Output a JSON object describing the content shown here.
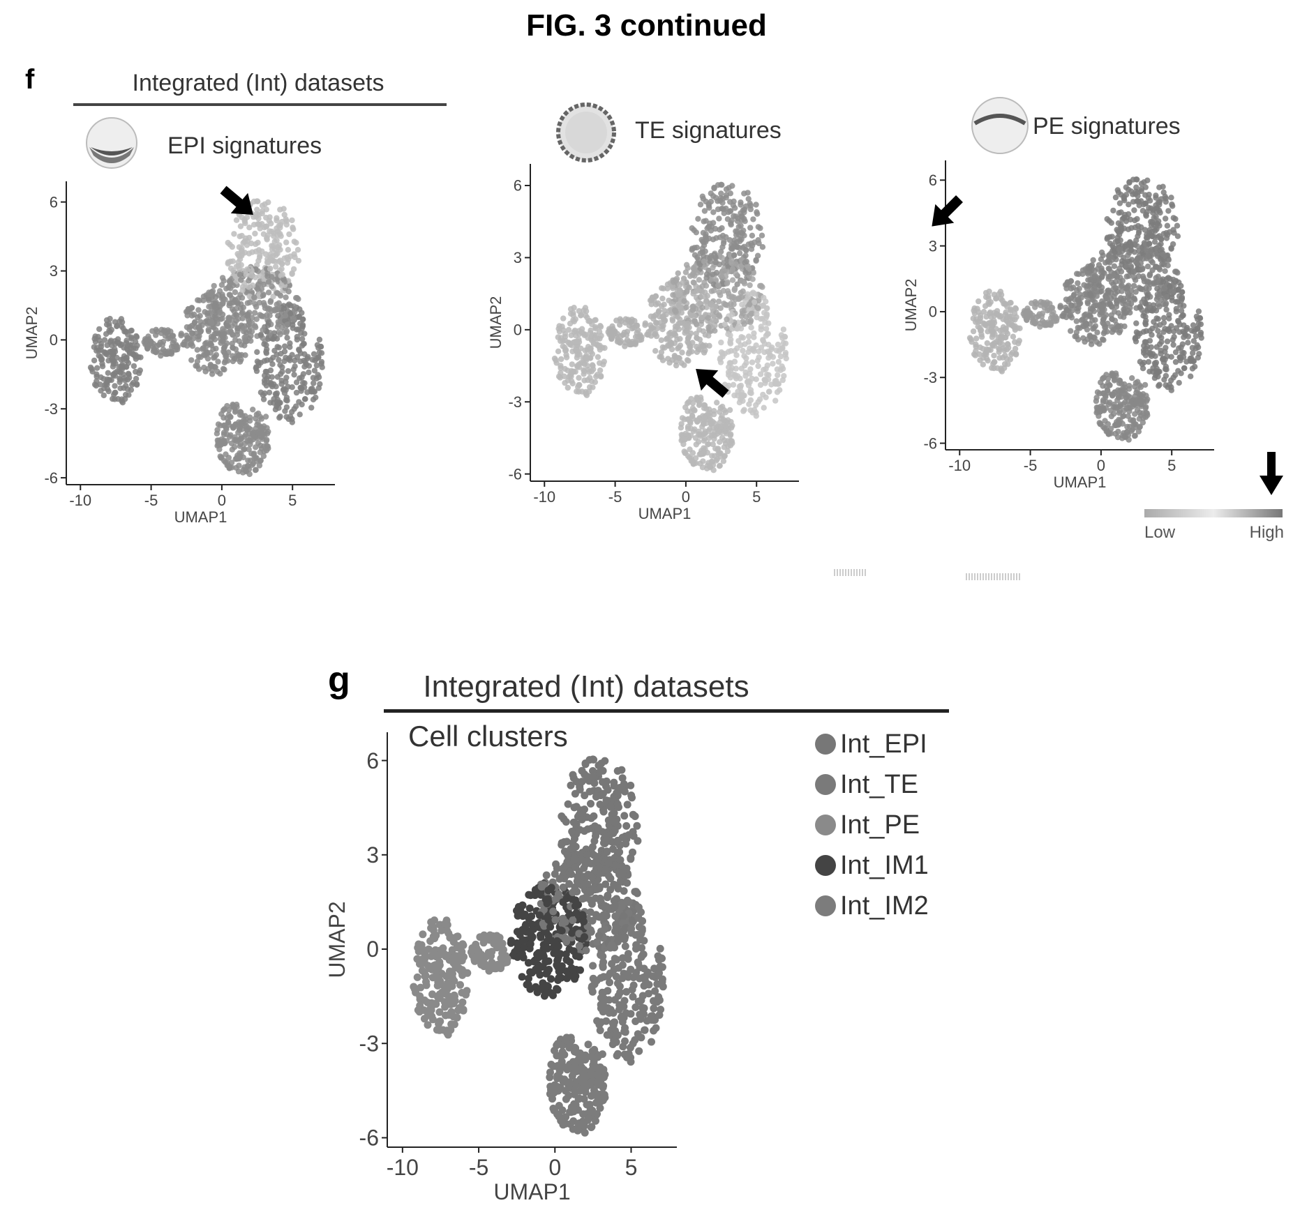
{
  "figure_title": "FIG. 3 continued",
  "panels": {
    "f": {
      "letter": "f",
      "group_title": "Integrated (Int) datasets",
      "subpanels": [
        {
          "id": "epi",
          "label": "EPI signatures",
          "embryo_icon": "embryo-epi-icon"
        },
        {
          "id": "te",
          "label": "TE signatures",
          "embryo_icon": "embryo-te-icon"
        },
        {
          "id": "pe",
          "label": "PE signatures",
          "embryo_icon": "embryo-pe-icon"
        }
      ],
      "colorbar": {
        "low_label": "Low",
        "high_label": "High",
        "colors": [
          "#aaaaaa",
          "#ececec",
          "#777777"
        ]
      }
    },
    "g": {
      "letter": "g",
      "group_title": "Integrated (Int) datasets",
      "inset_label": "Cell clusters"
    }
  },
  "chart_data": [
    {
      "type": "scatter",
      "id": "f-epi",
      "xlabel": "UMAP1",
      "ylabel": "UMAP2",
      "xlim": [
        -11,
        8
      ],
      "ylim": [
        -6.3,
        6.9
      ],
      "xticks": [
        -10,
        -5,
        0,
        5
      ],
      "yticks": [
        -6,
        -3,
        0,
        3,
        6
      ],
      "encoding": "feature expression (Low to High)",
      "highlight_arrow_region": "top cluster (EPI)"
    },
    {
      "type": "scatter",
      "id": "f-te",
      "xlabel": "UMAP1",
      "ylabel": "UMAP2",
      "xlim": [
        -11,
        8
      ],
      "ylim": [
        -6.3,
        6.9
      ],
      "xticks": [
        -10,
        -5,
        0,
        5
      ],
      "yticks": [
        -6,
        -3,
        0,
        3,
        6
      ],
      "encoding": "feature expression (Low to High)",
      "highlight_arrow_region": "right cluster (TE)"
    },
    {
      "type": "scatter",
      "id": "f-pe",
      "xlabel": "UMAP1",
      "ylabel": "UMAP2",
      "xlim": [
        -11,
        8
      ],
      "ylim": [
        -6.3,
        6.9
      ],
      "xticks": [
        -10,
        -5,
        0,
        5
      ],
      "yticks": [
        -6,
        -3,
        0,
        3,
        6
      ],
      "encoding": "feature expression (Low to High)",
      "highlight_arrow_region": "left cluster (PE)"
    },
    {
      "type": "scatter",
      "id": "g-clusters",
      "xlabel": "UMAP1",
      "ylabel": "UMAP2",
      "xlim": [
        -11,
        8
      ],
      "ylim": [
        -6.3,
        6.9
      ],
      "xticks": [
        -10,
        -5,
        0,
        5
      ],
      "yticks": [
        -6,
        -3,
        0,
        3,
        6
      ],
      "legend_position": "right",
      "series": [
        {
          "name": "Int_EPI",
          "color": "#777777",
          "region": "top lobe",
          "cx": 2.9,
          "cy": 3.6
        },
        {
          "name": "Int_TE",
          "color": "#7a7a7a",
          "region": "right lobe",
          "cx": 4.8,
          "cy": -1.0
        },
        {
          "name": "Int_PE",
          "color": "#8a8a8a",
          "region": "left lobe",
          "cx": -7.5,
          "cy": -1.2
        },
        {
          "name": "Int_IM1",
          "color": "#444444",
          "region": "center",
          "cx": -0.4,
          "cy": 0.5
        },
        {
          "name": "Int_IM2",
          "color": "#7c7c7c",
          "region": "bottom lobe",
          "cx": 1.5,
          "cy": -4.2
        }
      ]
    }
  ]
}
